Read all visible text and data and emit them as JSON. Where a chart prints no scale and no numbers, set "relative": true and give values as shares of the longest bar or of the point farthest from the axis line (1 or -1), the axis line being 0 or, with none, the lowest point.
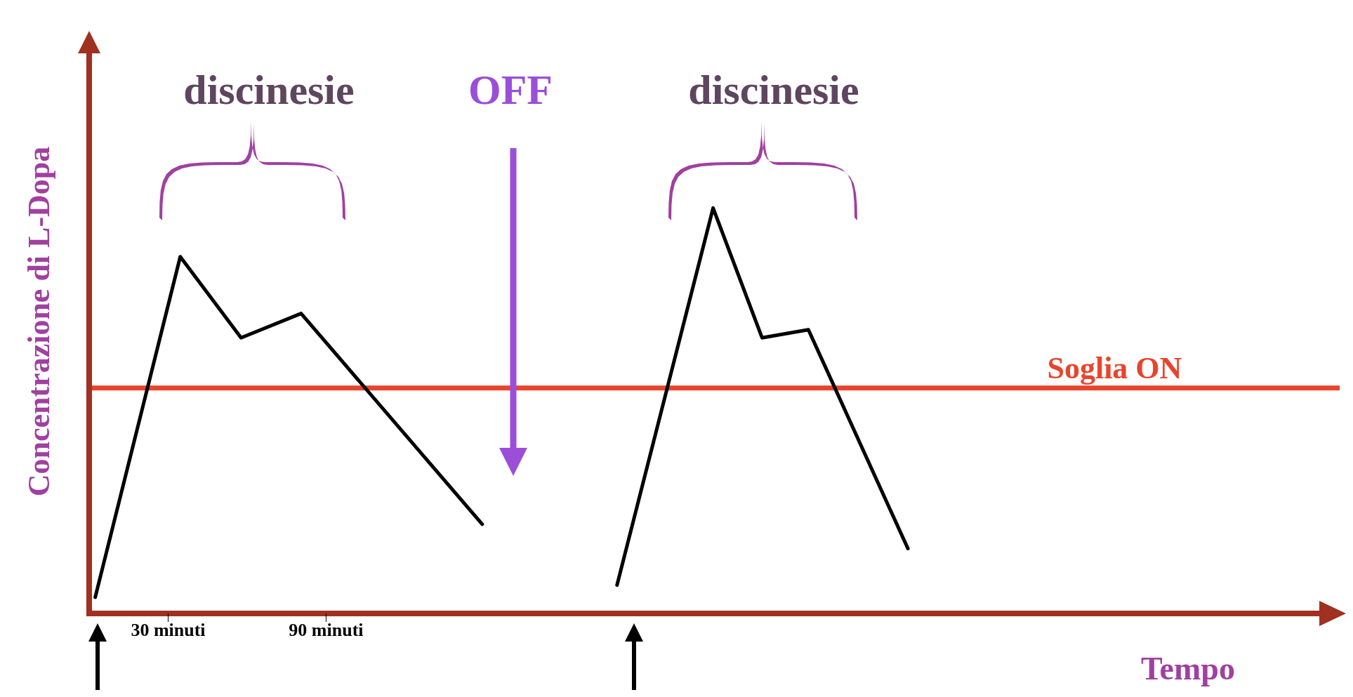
{
  "chart_data": {
    "type": "line",
    "relative": true,
    "xlabel": "Tempo",
    "ylabel": "Concentrazione di L-Dopa",
    "xlim": [
      0,
      475
    ],
    "xticks": [
      {
        "value": 30,
        "label": "30 minuti"
      },
      {
        "value": 90,
        "label": "90 minuti"
      }
    ],
    "tick_labels": "x",
    "marker": "none",
    "line_style": "solid",
    "series": [
      {
        "color": "#000000",
        "x": [
          2.3,
          34.6,
          57.7,
          80.5,
          149.3
        ],
        "values": [
          0.04,
          0.88,
          0.68,
          0.74,
          0.22
        ]
      },
      {
        "color": "#000000",
        "x": [
          200.5,
          237,
          255.6,
          273.2,
          311
        ],
        "values": [
          0.07,
          1,
          0.68,
          0.7,
          0.16
        ]
      }
    ],
    "ref_lines": [
      {
        "axis": "y",
        "value": 0.556,
        "label": "Soglia ON",
        "color": "#e8452c"
      }
    ],
    "annotations": [
      "discinesie",
      "OFF",
      "discinesie"
    ]
  }
}
